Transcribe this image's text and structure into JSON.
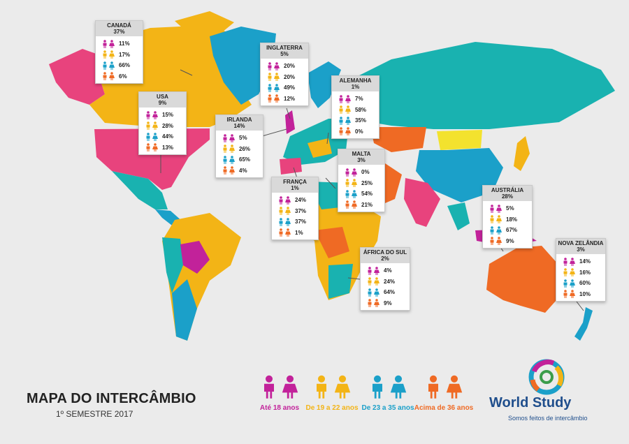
{
  "title": "MAPA DO INTERCÂMBIO",
  "subtitle": "1º SEMESTRE 2017",
  "brand": {
    "name": "World Study",
    "tagline": "Somos feitos de intercâmbio"
  },
  "age_groups": [
    {
      "label": "Até 18 anos",
      "color": "#c2229a"
    },
    {
      "label": "De 19 a 22 anos",
      "color": "#f3b416"
    },
    {
      "label": "De 23 a 35 anos",
      "color": "#1ba0c9"
    },
    {
      "label": "Acima de 36 anos",
      "color": "#ef6a24"
    }
  ],
  "chart_data": {
    "type": "table",
    "title": "MAPA DO INTERCÂMBIO",
    "columns": [
      "Até 18 anos",
      "De 19 a 22 anos",
      "De 23 a 35 anos",
      "Acima de 36 anos"
    ],
    "countries": [
      {
        "name": "CANADÁ",
        "share": "37%",
        "values": [
          "11%",
          "17%",
          "66%",
          "6%"
        ]
      },
      {
        "name": "USA",
        "share": "9%",
        "values": [
          "15%",
          "28%",
          "44%",
          "13%"
        ]
      },
      {
        "name": "INGLATERRA",
        "share": "5%",
        "values": [
          "20%",
          "20%",
          "49%",
          "12%"
        ]
      },
      {
        "name": "ALEMANHA",
        "share": "1%",
        "values": [
          "7%",
          "58%",
          "35%",
          "0%"
        ]
      },
      {
        "name": "IRLANDA",
        "share": "14%",
        "values": [
          "5%",
          "26%",
          "65%",
          "4%"
        ]
      },
      {
        "name": "MALTA",
        "share": "3%",
        "values": [
          "0%",
          "25%",
          "54%",
          "21%"
        ]
      },
      {
        "name": "FRANÇA",
        "share": "1%",
        "values": [
          "24%",
          "37%",
          "37%",
          "1%"
        ]
      },
      {
        "name": "ÁFRICA DO SUL",
        "share": "2%",
        "values": [
          "4%",
          "24%",
          "64%",
          "9%"
        ]
      },
      {
        "name": "AUSTRÁLIA",
        "share": "28%",
        "values": [
          "5%",
          "18%",
          "67%",
          "9%"
        ]
      },
      {
        "name": "NOVA ZELÂNDIA",
        "share": "3%",
        "values": [
          "14%",
          "16%",
          "60%",
          "10%"
        ]
      }
    ]
  }
}
